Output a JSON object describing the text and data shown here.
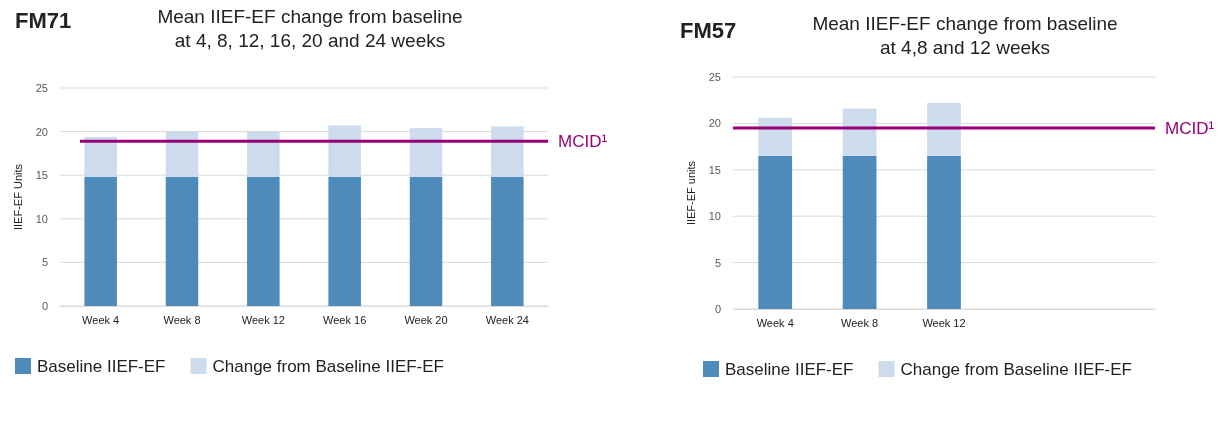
{
  "chart_data": [
    {
      "type": "bar",
      "title": "FM71",
      "subtitle": "Mean IIEF-EF change from baseline\nat 4, 8, 12, 16, 20 and 24 weeks",
      "ylabel": "IIEF-EF Units",
      "categories": [
        "Week 4",
        "Week 8",
        "Week 12",
        "Week 16",
        "Week 20",
        "Week 24"
      ],
      "stacked": true,
      "series": [
        {
          "name": "Baseline IIEF-EF",
          "color": "#4e8bbb",
          "values": [
            14.8,
            14.8,
            14.8,
            14.8,
            14.8,
            14.8
          ]
        },
        {
          "name": "Change from Baseline IIEF-EF",
          "color": "#cddcec",
          "values": [
            4.6,
            5.2,
            5.2,
            5.9,
            5.6,
            5.8
          ]
        }
      ],
      "ylim": [
        0,
        25
      ],
      "yticks": [
        0,
        5,
        10,
        15,
        20,
        25
      ],
      "grid": "y",
      "legend": "bottom",
      "ref_lines": [
        {
          "axis": "y",
          "value": 18.9,
          "label": "MCID¹",
          "color": "#990077"
        }
      ]
    },
    {
      "type": "bar",
      "title": "FM57",
      "subtitle": "Mean IIEF-EF change from baseline\nat 4,8 and 12 weeks",
      "ylabel": "IIEF-EF units",
      "categories": [
        "Week 4",
        "Week 8",
        "Week 12",
        null,
        null
      ],
      "stacked": true,
      "series": [
        {
          "name": "Baseline IIEF-EF",
          "color": "#4e8bbb",
          "values": [
            16.5,
            16.5,
            16.5,
            null,
            null
          ]
        },
        {
          "name": "Change from Baseline IIEF-EF",
          "color": "#cddcec",
          "values": [
            4.1,
            5.1,
            5.7,
            null,
            null
          ]
        }
      ],
      "ylim": [
        0,
        25
      ],
      "yticks": [
        0,
        5,
        10,
        15,
        20,
        25
      ],
      "grid": "y",
      "legend": "bottom",
      "ref_lines": [
        {
          "axis": "y",
          "value": 19.5,
          "label": "MCID¹",
          "color": "#990077"
        }
      ]
    }
  ]
}
